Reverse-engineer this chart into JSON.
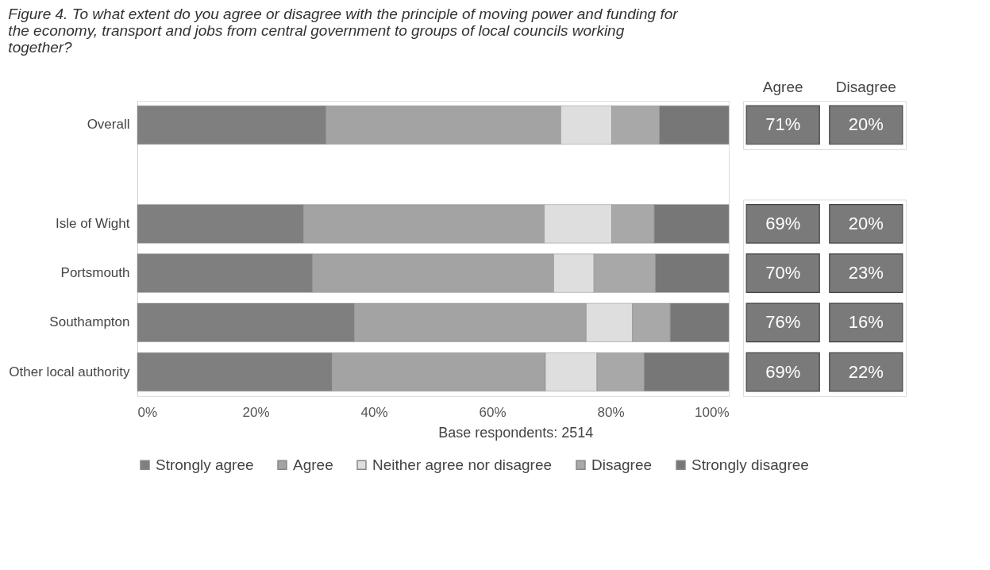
{
  "chart_data": [
    {
      "type": "bar",
      "orientation": "horizontal",
      "stacked": true,
      "title": "Figure 4. To what extent do you agree or disagree with the principle of moving power and funding for the economy, transport and jobs from central government to groups of local councils working together?",
      "categories": [
        "Overall",
        null,
        "Isle of Wight",
        "Portsmouth",
        "Southampton",
        "Other local authority"
      ],
      "series": [
        {
          "name": "Strongly agree",
          "color": "#7f7f7f",
          "values": [
            31.9,
            null,
            28.1,
            29.6,
            36.7,
            32.9
          ]
        },
        {
          "name": "Agree",
          "color": "#a3a3a3",
          "values": [
            39.7,
            null,
            40.7,
            40.8,
            39.2,
            36.1
          ]
        },
        {
          "name": "Neither agree nor disagree",
          "color": "#dedede",
          "values": [
            8.6,
            null,
            11.4,
            6.8,
            7.8,
            8.7
          ]
        },
        {
          "name": "Disagree",
          "color": "#a8a8a8",
          "values": [
            8.1,
            null,
            7.2,
            10.4,
            6.4,
            8.0
          ]
        },
        {
          "name": "Strongly disagree",
          "color": "#777777",
          "values": [
            11.7,
            null,
            12.6,
            12.4,
            9.9,
            14.3
          ]
        }
      ],
      "xlim": [
        0,
        100
      ],
      "xticks": [
        {
          "value": 0,
          "label": "0%"
        },
        {
          "value": 20,
          "label": "20%"
        },
        {
          "value": 40,
          "label": "40%"
        },
        {
          "value": 60,
          "label": "60%"
        },
        {
          "value": 80,
          "label": "80%"
        },
        {
          "value": 100,
          "label": "100%"
        }
      ],
      "grid": false,
      "legend": "bottom",
      "annotations": [
        "Base respondents: 2514"
      ]
    },
    {
      "type": "other",
      "color": "#7a7a7a",
      "categories": [
        "Agree",
        "Disagree"
      ],
      "cell_labels": [
        [
          "71%",
          "20%"
        ]
      ]
    },
    {
      "type": "other",
      "color": "#7a7a7a",
      "cell_labels": [
        [
          "69%",
          "20%"
        ],
        [
          "70%",
          "23%"
        ],
        [
          "76%",
          "16%"
        ],
        [
          "69%",
          "22%"
        ]
      ]
    }
  ]
}
